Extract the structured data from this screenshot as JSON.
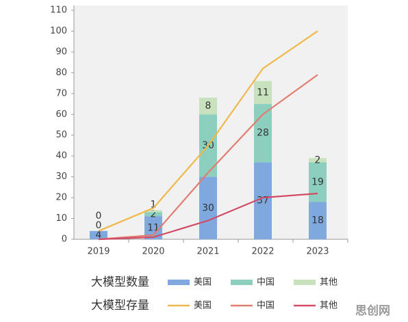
{
  "chart_data": {
    "type": "bar-line",
    "categories": [
      "2019",
      "2020",
      "2021",
      "2022",
      "2023"
    ],
    "ylim": [
      0,
      110
    ],
    "yticks": [
      0,
      10,
      20,
      30,
      40,
      50,
      60,
      70,
      80,
      90,
      100,
      110
    ],
    "bar_legend_title": "大模型数量",
    "line_legend_title": "大模型存量",
    "bar_series": [
      {
        "name": "美国",
        "color": "#7ea8de",
        "values": [
          4,
          11,
          30,
          37,
          18
        ]
      },
      {
        "name": "中国",
        "color": "#8dcfbf",
        "values": [
          0,
          2,
          30,
          28,
          19
        ]
      },
      {
        "name": "其他",
        "color": "#c8e2bd",
        "values": [
          0,
          1,
          8,
          11,
          2
        ]
      }
    ],
    "line_series": [
      {
        "name": "美国",
        "color": "#f0b74a",
        "values": [
          4,
          15,
          45,
          82,
          100
        ]
      },
      {
        "name": "中国",
        "color": "#e27c6e",
        "values": [
          0,
          2,
          32,
          60,
          79
        ]
      },
      {
        "name": "其他",
        "color": "#d24b67",
        "values": [
          0,
          1,
          9,
          20,
          22
        ]
      }
    ],
    "watermark": "思创网"
  }
}
